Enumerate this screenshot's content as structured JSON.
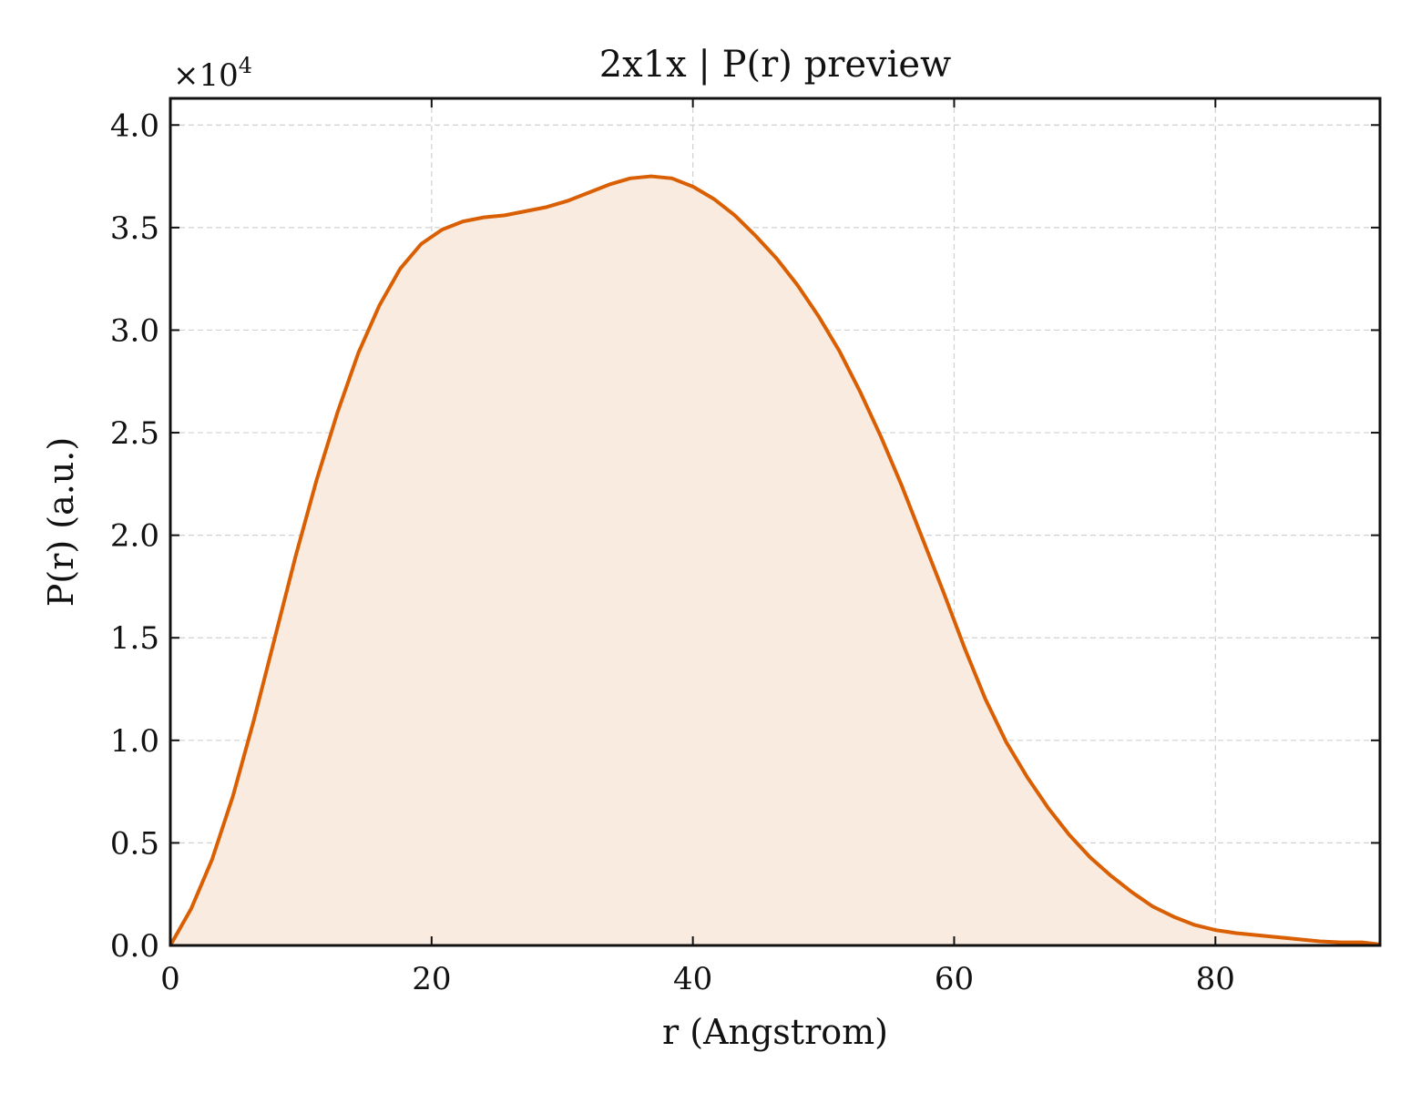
{
  "chart_data": {
    "type": "area",
    "title": "2x1x | P(r) preview",
    "xlabel": "r (Angstrom)",
    "ylabel": "P(r) (a.u.)",
    "y_multiplier_label": "×10",
    "y_multiplier_exponent": "4",
    "xlim": [
      0,
      92.6
    ],
    "ylim": [
      0,
      4.13
    ],
    "x_ticks": [
      0,
      20,
      40,
      60,
      80
    ],
    "x_tick_labels": [
      "0",
      "20",
      "40",
      "60",
      "80"
    ],
    "y_ticks": [
      0,
      0.5,
      1.0,
      1.5,
      2.0,
      2.5,
      3.0,
      3.5,
      4.0
    ],
    "y_tick_labels": [
      "0.0",
      "0.5",
      "1.0",
      "1.5",
      "2.0",
      "2.5",
      "3.0",
      "3.5",
      "4.0"
    ],
    "grid": true,
    "line_color": "#d95f02",
    "fill_color": "#f9ebe0",
    "series": [
      {
        "x": [
          0,
          1.6,
          3.2,
          4.8,
          6.4,
          8.0,
          9.6,
          11.2,
          12.8,
          14.4,
          16.0,
          17.6,
          19.2,
          20.8,
          22.4,
          24.0,
          25.6,
          27.2,
          28.8,
          30.4,
          32.0,
          33.6,
          35.2,
          36.8,
          38.4,
          40.0,
          41.6,
          43.2,
          44.8,
          46.4,
          48.0,
          49.6,
          51.2,
          52.8,
          54.4,
          56.0,
          57.6,
          59.2,
          60.8,
          62.4,
          64.0,
          65.6,
          67.2,
          68.8,
          70.4,
          72.0,
          73.6,
          75.2,
          76.8,
          78.4,
          80.0,
          81.6,
          83.2,
          84.8,
          86.4,
          88.0,
          89.6,
          91.2,
          92.6
        ],
        "y": [
          0,
          0.18,
          0.42,
          0.73,
          1.1,
          1.5,
          1.9,
          2.27,
          2.6,
          2.89,
          3.12,
          3.3,
          3.42,
          3.49,
          3.53,
          3.55,
          3.56,
          3.58,
          3.6,
          3.63,
          3.67,
          3.71,
          3.74,
          3.75,
          3.74,
          3.7,
          3.64,
          3.56,
          3.46,
          3.35,
          3.22,
          3.07,
          2.9,
          2.7,
          2.48,
          2.24,
          1.98,
          1.72,
          1.45,
          1.2,
          0.99,
          0.82,
          0.67,
          0.54,
          0.43,
          0.34,
          0.26,
          0.19,
          0.14,
          0.1,
          0.075,
          0.06,
          0.05,
          0.04,
          0.03,
          0.02,
          0.015,
          0.015,
          0.005
        ]
      }
    ]
  }
}
